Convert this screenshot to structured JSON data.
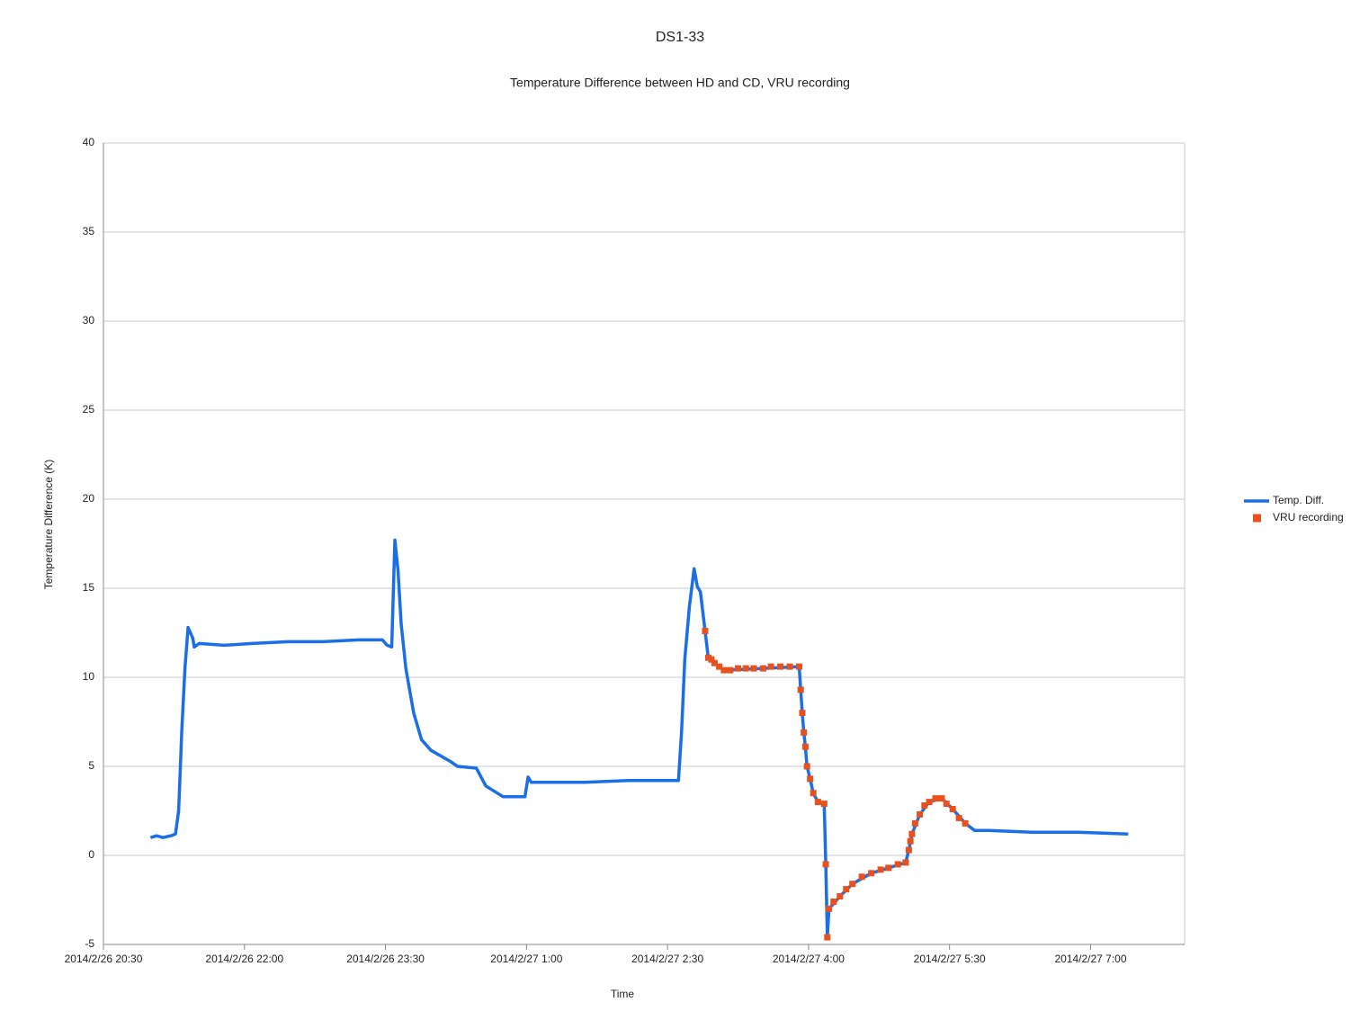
{
  "chart_data": {
    "type": "line",
    "title": "DS1-33",
    "subtitle": "Temperature Difference between HD and CD, VRU recording",
    "x_label": "Time",
    "y_label": "Temperature Difference (K)",
    "xlim": [
      "2014/2/26 20:30",
      "2014/2/27 8:00"
    ],
    "xticks": [
      "2014/2/26 20:30",
      "2014/2/26 22:00",
      "2014/2/26 23:30",
      "2014/2/27 1:00",
      "2014/2/27 2:30",
      "2014/2/27 4:00",
      "2014/2/27 5:30",
      "2014/2/27 7:00"
    ],
    "ylim": [
      -5,
      40
    ],
    "yticks": [
      -5,
      0,
      5,
      10,
      15,
      20,
      25,
      30,
      35,
      40
    ],
    "grid": true,
    "legend": "right",
    "series": [
      {
        "name": "Temp. Diff.",
        "type": "line",
        "color": "#1a6fe8",
        "x": [
          "2014/2/26 21:00",
          "2014/2/26 21:04",
          "2014/2/26 21:08",
          "2014/2/26 21:13",
          "2014/2/26 21:16",
          "2014/2/26 21:18",
          "2014/2/26 21:20",
          "2014/2/26 21:22",
          "2014/2/26 21:24",
          "2014/2/26 21:27",
          "2014/2/26 21:28",
          "2014/2/26 21:31",
          "2014/2/26 21:47",
          "2014/2/26 22:05",
          "2014/2/26 22:28",
          "2014/2/26 22:50",
          "2014/2/26 23:13",
          "2014/2/26 23:28",
          "2014/2/26 23:31",
          "2014/2/26 23:34",
          "2014/2/26 23:36",
          "2014/2/26 23:38",
          "2014/2/26 23:40",
          "2014/2/26 23:43",
          "2014/2/26 23:48",
          "2014/2/26 23:53",
          "2014/2/26 23:59",
          "2014/2/27 0:11",
          "2014/2/27 0:16",
          "2014/2/27 0:28",
          "2014/2/27 0:34",
          "2014/2/27 0:45",
          "2014/2/27 0:59",
          "2014/2/27 1:01",
          "2014/2/27 1:03",
          "2014/2/27 1:37",
          "2014/2/27 2:05",
          "2014/2/27 2:37",
          "2014/2/27 2:39",
          "2014/2/27 2:41",
          "2014/2/27 2:44",
          "2014/2/27 2:47",
          "2014/2/27 2:49",
          "2014/2/27 2:51",
          "2014/2/27 2:54",
          "2014/2/27 2:56",
          "2014/2/27 3:00",
          "2014/2/27 3:06",
          "2014/2/27 3:31",
          "2014/2/27 3:54",
          "2014/2/27 3:55",
          "2014/2/27 3:56",
          "2014/2/27 3:57",
          "2014/2/27 3:58",
          "2014/2/27 3:59",
          "2014/2/27 4:01",
          "2014/2/27 4:03",
          "2014/2/27 4:06",
          "2014/2/27 4:10",
          "2014/2/27 4:11",
          "2014/2/27 4:12",
          "2014/2/27 4:13",
          "2014/2/27 4:20",
          "2014/2/27 4:28",
          "2014/2/27 4:40",
          "2014/2/27 4:51",
          "2014/2/27 5:02",
          "2014/2/27 5:04",
          "2014/2/27 5:06",
          "2014/2/27 5:11",
          "2014/2/27 5:17",
          "2014/2/27 5:25",
          "2014/2/27 5:32",
          "2014/2/27 5:40",
          "2014/2/27 5:46",
          "2014/2/27 5:55",
          "2014/2/27 6:23",
          "2014/2/27 6:52",
          "2014/2/27 7:24"
        ],
        "values": [
          1.0,
          1.1,
          1.0,
          1.1,
          1.2,
          2.5,
          7.0,
          10.5,
          12.8,
          12.2,
          11.7,
          11.9,
          11.8,
          11.9,
          12.0,
          12.0,
          12.1,
          12.1,
          11.8,
          11.7,
          17.7,
          16.0,
          13.0,
          10.5,
          8.0,
          6.5,
          5.9,
          5.3,
          5.0,
          4.9,
          3.9,
          3.3,
          3.3,
          4.4,
          4.1,
          4.1,
          4.2,
          4.2,
          7.0,
          11.0,
          14.0,
          16.1,
          15.1,
          14.8,
          12.6,
          11.1,
          10.8,
          10.4,
          10.5,
          10.6,
          9.3,
          8.0,
          6.9,
          6.1,
          5.0,
          4.3,
          3.5,
          3.0,
          2.9,
          -0.5,
          -4.6,
          -3.0,
          -2.3,
          -1.6,
          -1.0,
          -0.7,
          -0.4,
          0.3,
          1.2,
          2.3,
          3.0,
          3.2,
          2.6,
          1.8,
          1.4,
          1.4,
          1.3,
          1.3,
          1.2
        ]
      },
      {
        "name": "VRU recording",
        "type": "scatter",
        "color": "#e8501e",
        "x": [
          "2014/2/27 2:54",
          "2014/2/27 2:56",
          "2014/2/27 2:58",
          "2014/2/27 3:00",
          "2014/2/27 3:03",
          "2014/2/27 3:06",
          "2014/2/27 3:10",
          "2014/2/27 3:15",
          "2014/2/27 3:20",
          "2014/2/27 3:25",
          "2014/2/27 3:31",
          "2014/2/27 3:36",
          "2014/2/27 3:42",
          "2014/2/27 3:48",
          "2014/2/27 3:54",
          "2014/2/27 3:55",
          "2014/2/27 3:56",
          "2014/2/27 3:57",
          "2014/2/27 3:58",
          "2014/2/27 3:59",
          "2014/2/27 4:01",
          "2014/2/27 4:03",
          "2014/2/27 4:06",
          "2014/2/27 4:10",
          "2014/2/27 4:11",
          "2014/2/27 4:12",
          "2014/2/27 4:13",
          "2014/2/27 4:16",
          "2014/2/27 4:20",
          "2014/2/27 4:24",
          "2014/2/27 4:28",
          "2014/2/27 4:34",
          "2014/2/27 4:40",
          "2014/2/27 4:46",
          "2014/2/27 4:51",
          "2014/2/27 4:57",
          "2014/2/27 5:02",
          "2014/2/27 5:04",
          "2014/2/27 5:05",
          "2014/2/27 5:06",
          "2014/2/27 5:08",
          "2014/2/27 5:11",
          "2014/2/27 5:14",
          "2014/2/27 5:17",
          "2014/2/27 5:21",
          "2014/2/27 5:25",
          "2014/2/27 5:28",
          "2014/2/27 5:32",
          "2014/2/27 5:36",
          "2014/2/27 5:40"
        ],
        "values": [
          12.6,
          11.1,
          11.0,
          10.8,
          10.6,
          10.4,
          10.4,
          10.5,
          10.5,
          10.5,
          10.5,
          10.6,
          10.6,
          10.6,
          10.6,
          9.3,
          8.0,
          6.9,
          6.1,
          5.0,
          4.3,
          3.5,
          3.0,
          2.9,
          -0.5,
          -4.6,
          -3.0,
          -2.6,
          -2.3,
          -1.9,
          -1.6,
          -1.2,
          -1.0,
          -0.8,
          -0.7,
          -0.5,
          -0.4,
          0.3,
          0.8,
          1.2,
          1.8,
          2.3,
          2.8,
          3.0,
          3.2,
          3.2,
          2.9,
          2.6,
          2.1,
          1.8
        ]
      }
    ]
  }
}
